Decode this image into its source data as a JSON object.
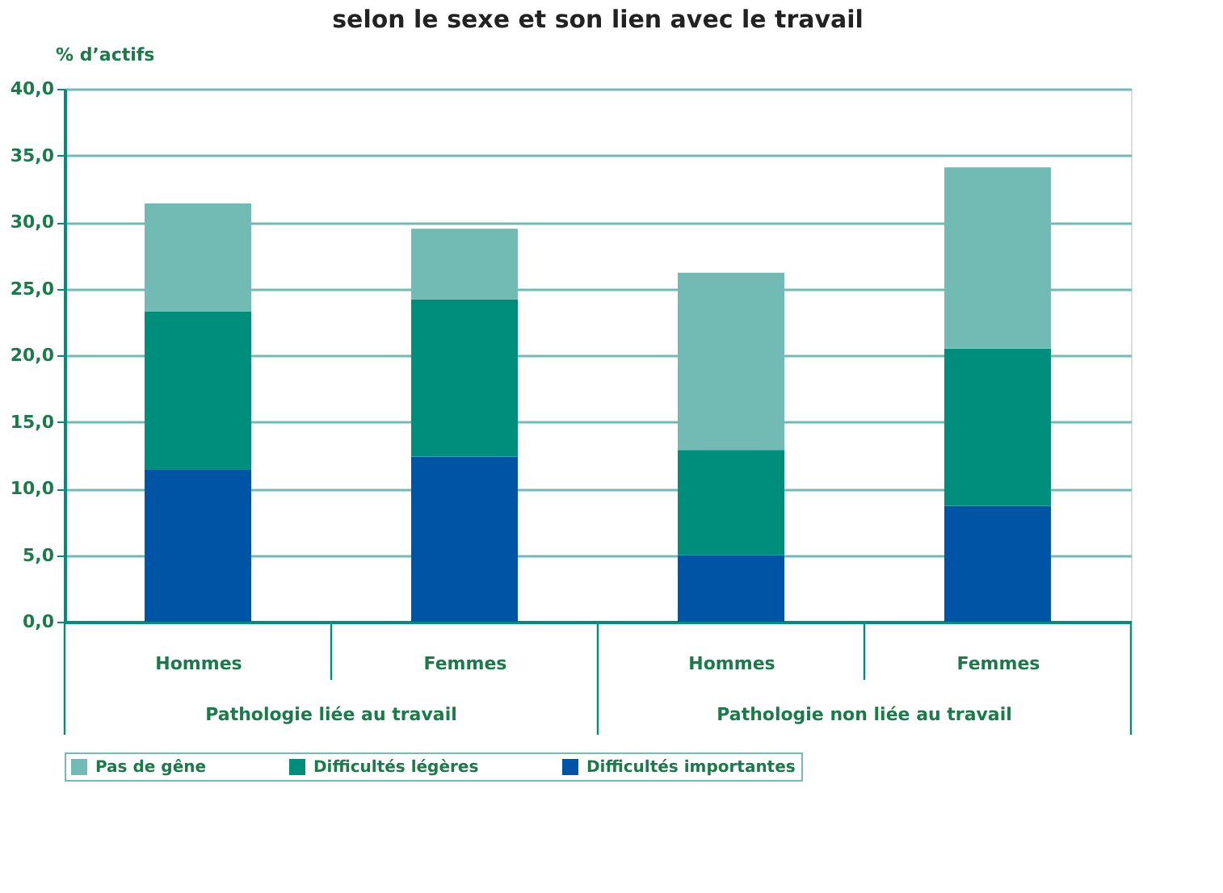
{
  "chart_data": {
    "type": "bar",
    "stacked": true,
    "title": "selon le sexe et son lien avec le travail",
    "ylabel": "% d’actifs",
    "categories": [
      "Hommes",
      "Femmes",
      "Hommes",
      "Femmes"
    ],
    "annotations": [
      "Pathologie liée au travail",
      "Pathologie non liée au travail"
    ],
    "series": [
      {
        "name": "Difficultés importantes",
        "color": "#0054a6",
        "values": [
          11.4,
          12.4,
          5.0,
          8.7
        ]
      },
      {
        "name": "Difficultés légères",
        "color": "#008e7c",
        "values": [
          11.9,
          11.8,
          7.9,
          11.8
        ]
      },
      {
        "name": "Pas de gêne",
        "color": "#72bab4",
        "values": [
          8.1,
          5.3,
          13.3,
          13.6
        ]
      }
    ],
    "ylim": [
      0,
      40
    ],
    "yticks": [
      {
        "value": 0,
        "label": "0,0"
      },
      {
        "value": 5,
        "label": "5,0"
      },
      {
        "value": 10,
        "label": "10,0"
      },
      {
        "value": 15,
        "label": "15,0"
      },
      {
        "value": 20,
        "label": "20,0"
      },
      {
        "value": 25,
        "label": "25,0"
      },
      {
        "value": 30,
        "label": "30,0"
      },
      {
        "value": 35,
        "label": "35,0"
      },
      {
        "value": 40,
        "label": "40,0"
      }
    ],
    "grid": "y",
    "legend": "bottom"
  }
}
